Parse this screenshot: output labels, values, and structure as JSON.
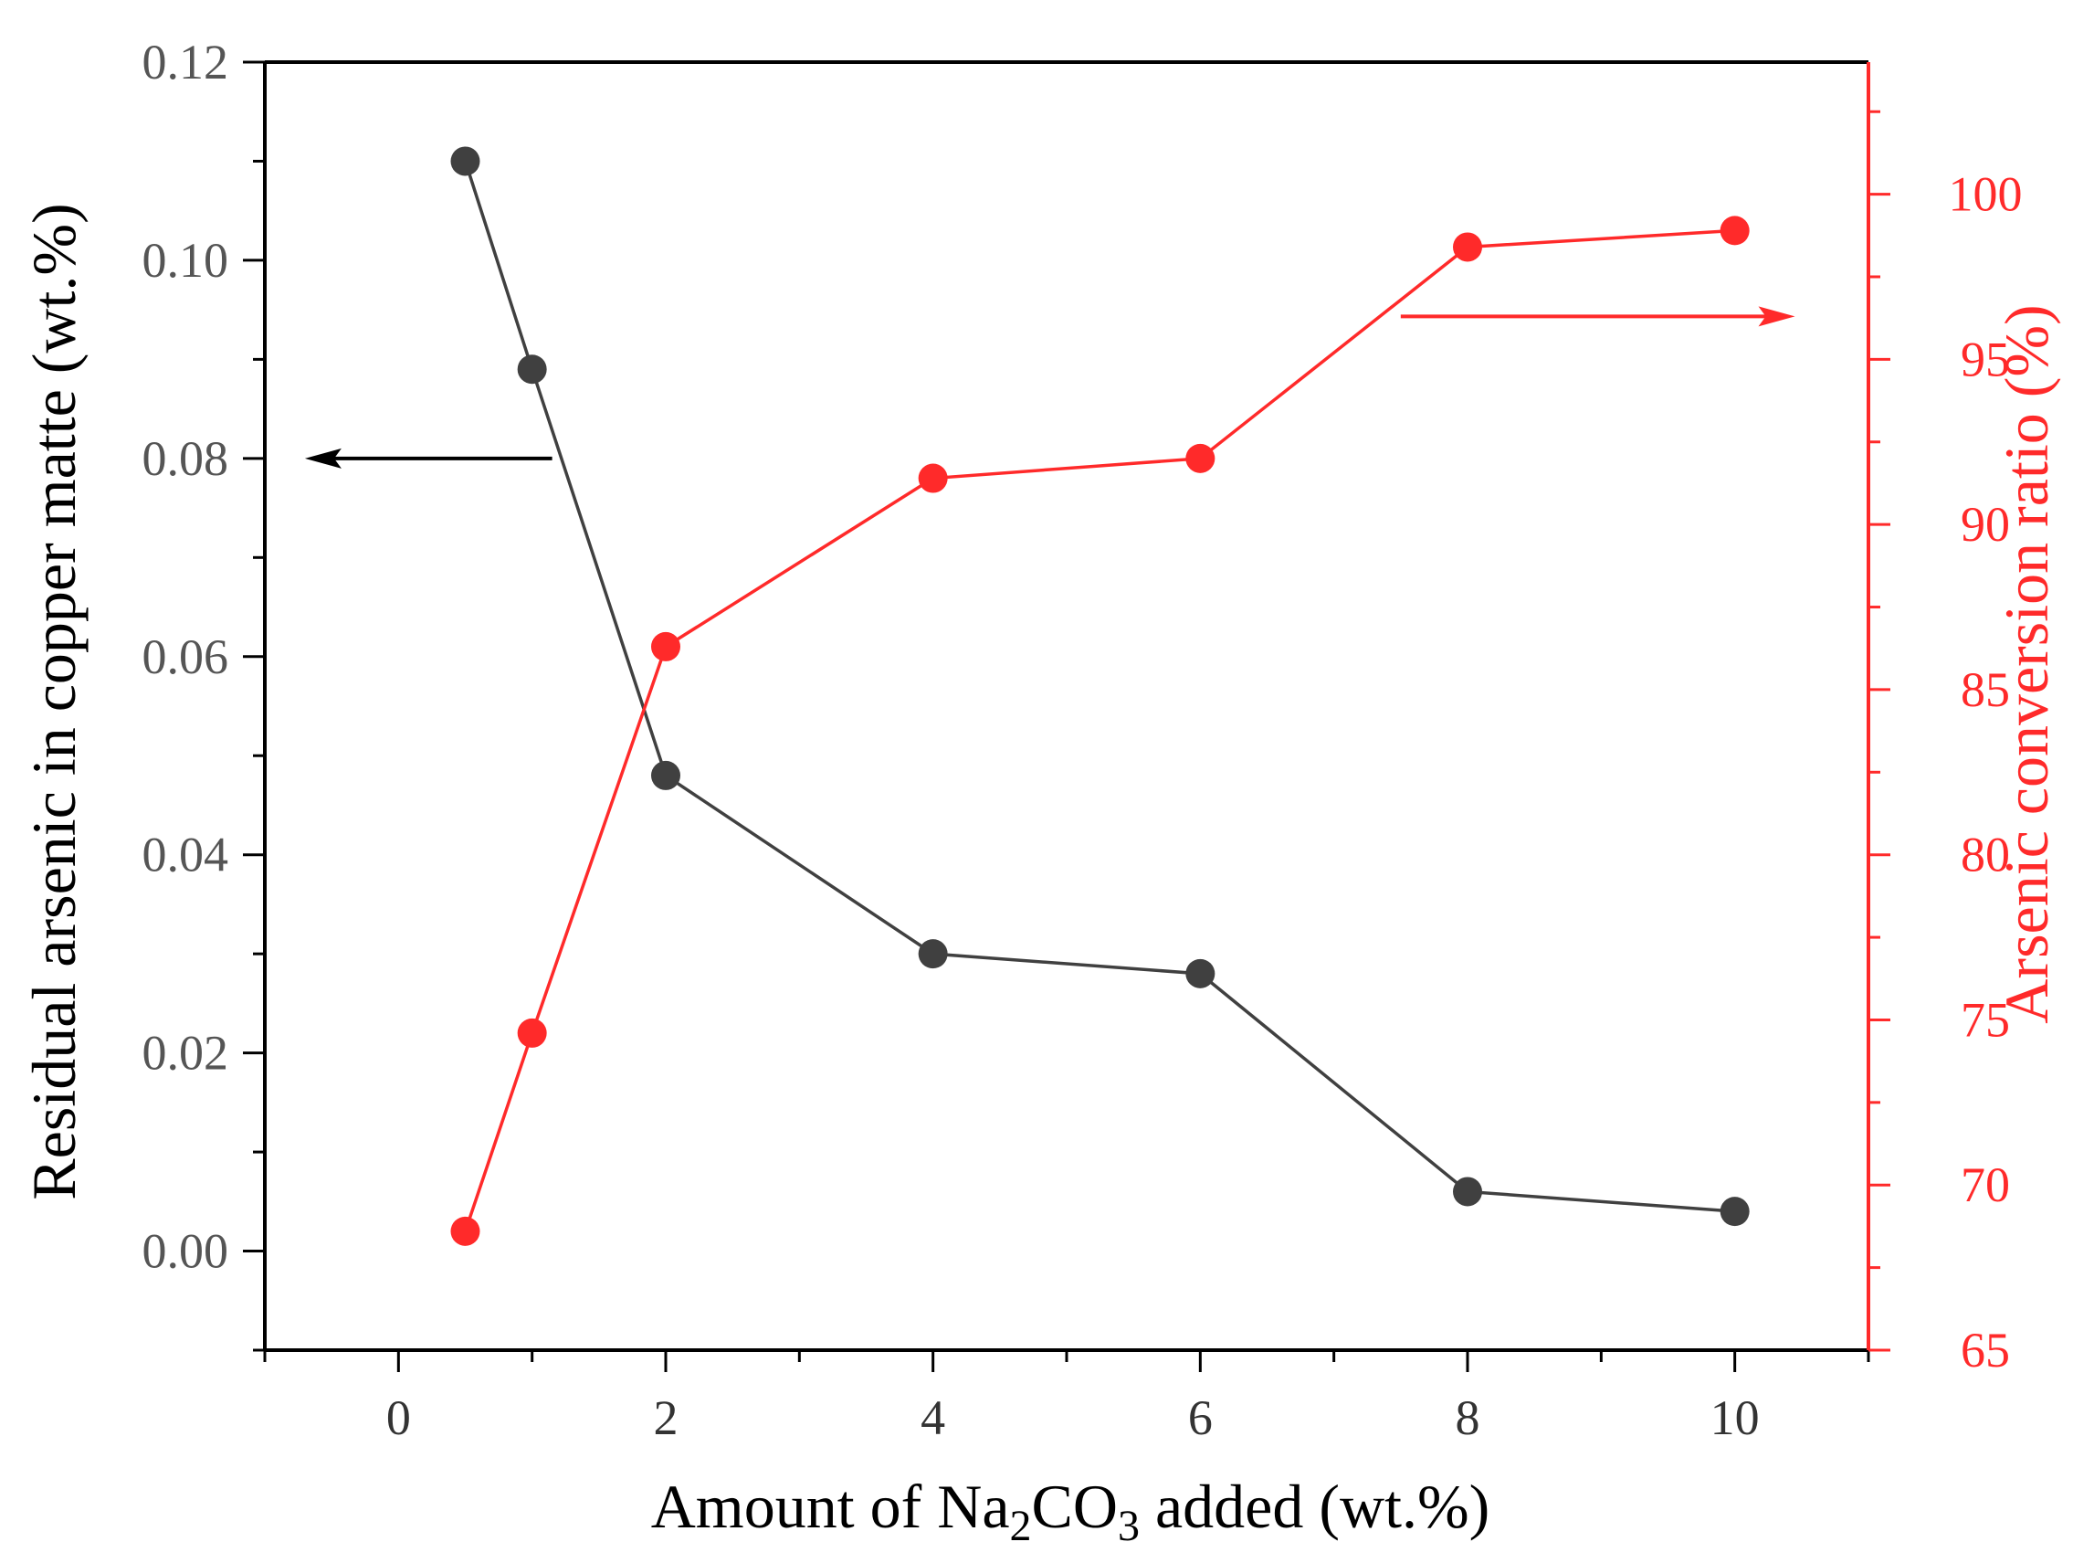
{
  "chart_data": {
    "type": "line",
    "title": "",
    "xlabel": {
      "prefix": "Amount of Na",
      "sub1": "2",
      "middle": "CO",
      "sub2": "3",
      "suffix": " added  (wt.%)"
    },
    "ylabel_left": "Residual arsenic in copper matte (wt.%)",
    "ylabel_right": "Arsenic conversion ratio (%)",
    "xlim": [
      -1,
      11
    ],
    "ylim_left": [
      -0.01,
      0.12
    ],
    "ylim_right": [
      65,
      104
    ],
    "xticks": [
      {
        "value": 0,
        "label": "0"
      },
      {
        "value": 2,
        "label": "2"
      },
      {
        "value": 4,
        "label": "4"
      },
      {
        "value": 6,
        "label": "6"
      },
      {
        "value": 8,
        "label": "8"
      },
      {
        "value": 10,
        "label": "10"
      }
    ],
    "yticks_left": [
      {
        "value": 0.0,
        "label": "0.00"
      },
      {
        "value": 0.02,
        "label": "0.02"
      },
      {
        "value": 0.04,
        "label": "0.04"
      },
      {
        "value": 0.06,
        "label": "0.06"
      },
      {
        "value": 0.08,
        "label": "0.08"
      },
      {
        "value": 0.1,
        "label": "0.10"
      },
      {
        "value": 0.12,
        "label": "0.12"
      }
    ],
    "yticks_right": [
      {
        "value": 65,
        "label": "65"
      },
      {
        "value": 70,
        "label": "70"
      },
      {
        "value": 75,
        "label": "75"
      },
      {
        "value": 80,
        "label": "80"
      },
      {
        "value": 85,
        "label": "85"
      },
      {
        "value": 90,
        "label": "90"
      },
      {
        "value": 95,
        "label": "95"
      },
      {
        "value": 100,
        "label": "100"
      }
    ],
    "series": [
      {
        "name": "Residual arsenic in copper matte",
        "axis": "left",
        "color": "#404040",
        "x": [
          0.5,
          1,
          2,
          4,
          6,
          8,
          10
        ],
        "values": [
          0.11,
          0.089,
          0.048,
          0.03,
          0.028,
          0.006,
          0.004
        ]
      },
      {
        "name": "Arsenic conversion ratio",
        "axis": "right",
        "color": "#ff2a2a",
        "x": [
          0.5,
          1,
          2,
          4,
          6,
          8,
          10
        ],
        "values": [
          68.6,
          74.6,
          86.3,
          91.4,
          92.0,
          98.4,
          98.9
        ]
      }
    ],
    "annotations": [
      {
        "type": "arrow",
        "direction": "left",
        "target_axis": "left",
        "color": "#000000",
        "x_from": 1.15,
        "x_to": -0.7,
        "y": 0.08
      },
      {
        "type": "arrow",
        "direction": "right",
        "target_axis": "right",
        "color": "#ff2a2a",
        "x_from": 7.5,
        "x_to": 10.45,
        "y": 96.3
      }
    ],
    "colors": {
      "left_axis": "#555555",
      "right_axis": "#ff2a2a",
      "frame": "#000000"
    }
  }
}
